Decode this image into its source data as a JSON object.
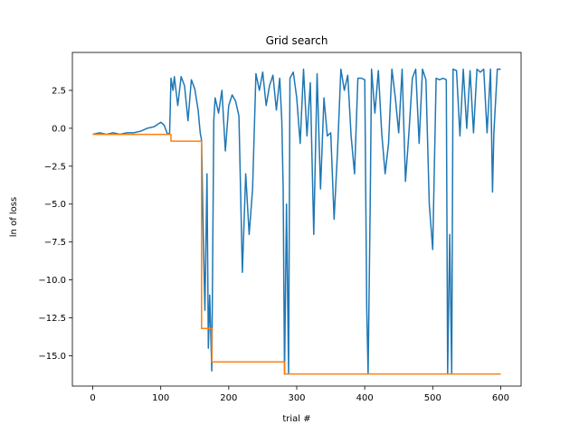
{
  "chart_data": {
    "type": "line",
    "title": "Grid search",
    "xlabel": "trial #",
    "ylabel": "ln of loss",
    "xlim": [
      -30,
      630
    ],
    "ylim": [
      -17,
      5
    ],
    "xticks": [
      0,
      100,
      200,
      300,
      400,
      500,
      600
    ],
    "xtick_labels": [
      "0",
      "100",
      "200",
      "300",
      "400",
      "500",
      "600"
    ],
    "yticks": [
      2.5,
      0.0,
      -2.5,
      -5.0,
      -7.5,
      -10.0,
      -12.5,
      -15.0
    ],
    "ytick_labels": [
      "2.5",
      "0.0",
      "−2.5",
      "−5.0",
      "−7.5",
      "−10.0",
      "−12.5",
      "−15.0"
    ],
    "grid": false,
    "series": [
      {
        "color": "#1f77b4",
        "x": [
          0,
          10,
          20,
          30,
          40,
          50,
          60,
          70,
          80,
          90,
          100,
          105,
          110,
          113,
          115,
          118,
          120,
          125,
          130,
          135,
          140,
          145,
          150,
          155,
          158,
          160,
          163,
          165,
          168,
          170,
          172,
          175,
          178,
          180,
          185,
          190,
          195,
          200,
          205,
          210,
          215,
          220,
          225,
          230,
          235,
          240,
          245,
          250,
          255,
          260,
          265,
          270,
          275,
          278,
          280,
          282,
          285,
          288,
          290,
          295,
          300,
          305,
          310,
          315,
          320,
          325,
          330,
          335,
          340,
          345,
          350,
          355,
          360,
          365,
          370,
          375,
          380,
          385,
          390,
          395,
          400,
          403,
          405,
          408,
          410,
          415,
          420,
          425,
          430,
          435,
          440,
          445,
          450,
          455,
          460,
          465,
          470,
          475,
          480,
          485,
          490,
          495,
          500,
          505,
          510,
          515,
          520,
          522,
          525,
          528,
          530,
          535,
          540,
          545,
          550,
          555,
          560,
          565,
          570,
          575,
          580,
          585,
          588,
          590,
          595,
          600
        ],
        "y": [
          -0.4,
          -0.3,
          -0.4,
          -0.3,
          -0.4,
          -0.3,
          -0.3,
          -0.2,
          0.0,
          0.1,
          0.4,
          0.2,
          -0.4,
          -0.3,
          3.3,
          2.5,
          3.4,
          1.5,
          3.4,
          2.8,
          0.5,
          3.2,
          2.6,
          1.2,
          -0.3,
          -0.8,
          -8.0,
          -12.0,
          -3.0,
          -14.5,
          -11.0,
          -16.0,
          0.5,
          2.0,
          1.0,
          2.5,
          -1.5,
          1.5,
          2.2,
          1.8,
          0.8,
          -9.5,
          -3.0,
          -7.0,
          -4.0,
          3.6,
          2.5,
          3.7,
          1.5,
          2.8,
          3.5,
          1.2,
          3.3,
          0.5,
          -4.0,
          -16.2,
          -5.0,
          -16.2,
          3.3,
          3.7,
          2.0,
          -1.0,
          3.9,
          -0.5,
          3.0,
          -7.0,
          3.6,
          -4.0,
          2.0,
          -0.5,
          -0.3,
          -6.0,
          -1.5,
          3.9,
          2.5,
          3.5,
          -0.5,
          -3.0,
          3.3,
          3.3,
          3.2,
          -12.0,
          -16.2,
          -5.0,
          3.9,
          1.0,
          3.8,
          -0.3,
          -3.0,
          -1.0,
          3.9,
          2.0,
          -0.3,
          3.9,
          -3.5,
          -0.3,
          3.3,
          3.9,
          -1.0,
          3.9,
          3.2,
          -5.0,
          -8.0,
          3.3,
          3.2,
          3.3,
          3.2,
          -16.2,
          -7.0,
          -16.2,
          3.9,
          3.8,
          -0.5,
          3.9,
          0.0,
          3.8,
          -0.3,
          3.9,
          3.7,
          3.9,
          -0.3,
          3.9,
          -4.2,
          -0.3,
          3.9,
          3.9
        ]
      },
      {
        "color": "#ff7f0e",
        "x": [
          0,
          115,
          115,
          160,
          160,
          175,
          175,
          282,
          282,
          600
        ],
        "y": [
          -0.4,
          -0.4,
          -0.85,
          -0.85,
          -13.2,
          -13.2,
          -15.4,
          -15.4,
          -16.2,
          -16.2
        ]
      }
    ]
  }
}
